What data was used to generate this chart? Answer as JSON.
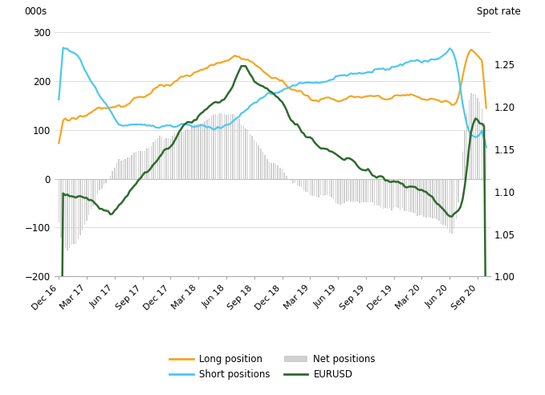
{
  "ylabel_left": "000s",
  "ylabel_right": "Spot rate",
  "ylim_left": [
    -200,
    320
  ],
  "ylim_right": [
    1.0,
    1.3
  ],
  "yticks_left": [
    -200,
    -100,
    0,
    100,
    200,
    300
  ],
  "yticks_right": [
    1.0,
    1.05,
    1.1,
    1.15,
    1.2,
    1.25
  ],
  "xtick_labels": [
    "Dec 16",
    "Mar 17",
    "Jun 17",
    "Sep 17",
    "Dec 17",
    "Mar 18",
    "Jun 18",
    "Sep 18",
    "Dec 18",
    "Mar 19",
    "Jun 19",
    "Sep 19",
    "Dec 19",
    "Mar 20",
    "Jun 20",
    "Sep 20"
  ],
  "colors": {
    "long": "#F5A623",
    "short": "#4DC8F0",
    "net_bar": "#C8C8C8",
    "eurusd": "#2D6A2D",
    "grid": "#DDDDDD",
    "zero_line": "#BBBBBB",
    "spine": "#AAAAAA"
  },
  "legend": {
    "long_label": "Long position",
    "short_label": "Short positions",
    "net_label": "Net positions",
    "eurusd_label": "EURUSD"
  }
}
